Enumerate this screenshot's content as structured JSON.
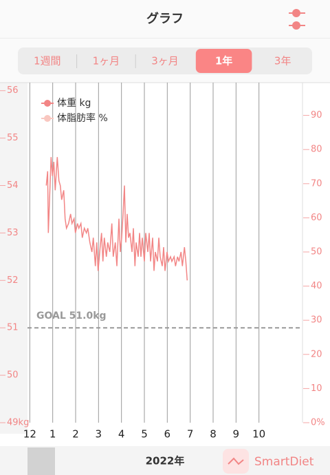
{
  "header": {
    "title": "グラフ"
  },
  "tabs": [
    "1週間",
    "1ヶ月",
    "3ヶ月",
    "1年",
    "3年"
  ],
  "selected_tab": 3,
  "chart_data": {
    "type": "line",
    "series": [
      {
        "name": "体重 kg",
        "color": "#f28585",
        "x": [
          0.72,
          0.78,
          0.81,
          0.87,
          0.93,
          0.99,
          1.05,
          1.11,
          1.2,
          1.27,
          1.33,
          1.39,
          1.48,
          1.54,
          1.6,
          1.69,
          1.78,
          1.84,
          1.93,
          1.99,
          2.08,
          2.14,
          2.23,
          2.29,
          2.38,
          2.47,
          2.53,
          2.62,
          2.71,
          2.77,
          2.86,
          2.92,
          2.98,
          3.07,
          3.13,
          3.19,
          3.25,
          3.34,
          3.4,
          3.49,
          3.58,
          3.64,
          3.73,
          3.8,
          3.89,
          3.95,
          4.01,
          4.07,
          4.13,
          4.19,
          4.25,
          4.31,
          4.37,
          4.46,
          4.52,
          4.59,
          4.64,
          4.73,
          4.79,
          4.85,
          4.91,
          5.0,
          5.06,
          5.15,
          5.21,
          5.27,
          5.36,
          5.42,
          5.48,
          5.57,
          5.63,
          5.69,
          5.78,
          5.84,
          5.9,
          5.99,
          6.05,
          6.14,
          6.2,
          6.3,
          6.36,
          6.45,
          6.51,
          6.6,
          6.66,
          6.75,
          6.81,
          6.87
        ],
        "values": [
          54.0,
          54.3,
          53.0,
          53.8,
          54.6,
          54.2,
          54.5,
          53.9,
          54.6,
          54.1,
          54.0,
          53.7,
          53.9,
          53.3,
          53.1,
          53.2,
          53.4,
          53.2,
          53.3,
          53.0,
          53.2,
          53.1,
          53.2,
          52.9,
          53.1,
          53.0,
          53.1,
          52.8,
          52.6,
          52.9,
          52.3,
          52.8,
          52.2,
          52.7,
          53.0,
          52.4,
          52.9,
          52.5,
          52.8,
          52.6,
          53.2,
          52.5,
          52.8,
          52.3,
          53.3,
          52.6,
          52.9,
          53.4,
          54.0,
          52.8,
          53.4,
          52.9,
          53.0,
          52.6,
          53.1,
          52.3,
          52.8,
          52.5,
          53.0,
          52.5,
          52.9,
          52.4,
          53.0,
          52.6,
          53.0,
          52.4,
          52.9,
          52.2,
          52.6,
          52.4,
          52.9,
          52.5,
          52.3,
          52.7,
          52.2,
          52.6,
          52.4,
          52.5,
          52.4,
          52.5,
          52.3,
          52.5,
          52.4,
          52.6,
          52.3,
          52.7,
          52.4,
          52.0
        ]
      },
      {
        "name": "体脂肪率 %",
        "color": "#f9c7c0",
        "axis": "y2",
        "x": [],
        "values": []
      }
    ],
    "xlim": [
      -0.1,
      11.9
    ],
    "xticks": [
      {
        "value": 0,
        "label": "12"
      },
      1,
      2,
      3,
      4,
      5,
      6,
      7,
      8,
      9,
      10
    ],
    "ylim": [
      49,
      56.17
    ],
    "yticks": [
      {
        "value": 49,
        "label": "49kg"
      },
      50,
      51,
      52,
      53,
      54,
      55,
      56
    ],
    "y2lim": [
      0,
      99.6
    ],
    "y2ticks": [
      {
        "value": 0,
        "label": "0%"
      },
      10,
      20,
      30,
      40,
      50,
      60,
      70,
      80,
      90
    ],
    "goal": {
      "value": 51,
      "label": "GOAL 51.0kg"
    },
    "grid": true
  },
  "footer": {
    "year": "2022年",
    "brand": "SmartDiet"
  }
}
